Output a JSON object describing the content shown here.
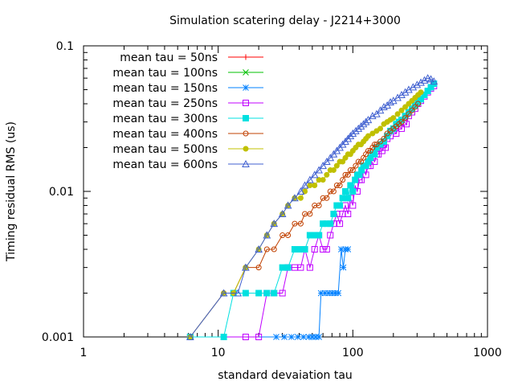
{
  "chart_data": {
    "type": "scatter",
    "title": "Simulation scatering delay - J2214+3000",
    "xlabel": "standard devaiation tau",
    "ylabel": "Timing residual RMS (us)",
    "xscale": "log",
    "yscale": "log",
    "xlim": [
      1,
      1000
    ],
    "ylim": [
      0.001,
      0.1
    ],
    "x_ticks": [
      {
        "value": 1,
        "label": "1"
      },
      {
        "value": 10,
        "label": "10"
      },
      {
        "value": 100,
        "label": "100"
      },
      {
        "value": 1000,
        "label": "1000"
      }
    ],
    "y_ticks": [
      {
        "value": 0.001,
        "label": "0.001"
      },
      {
        "value": 0.01,
        "label": "0.01"
      },
      {
        "value": 0.1,
        "label": "0.1"
      }
    ],
    "grid": false,
    "legend_position": "top-left",
    "series": [
      {
        "name": "mean tau = 50ns",
        "color": "#ff0000",
        "marker": "plus",
        "points": []
      },
      {
        "name": "mean tau = 100ns",
        "color": "#00c000",
        "marker": "cross",
        "points": []
      },
      {
        "name": "mean tau = 150ns",
        "color": "#0080ff",
        "marker": "star",
        "points": [
          [
            6.2,
            0.001
          ],
          [
            27,
            0.001
          ],
          [
            31,
            0.001
          ],
          [
            35,
            0.001
          ],
          [
            39,
            0.001
          ],
          [
            43,
            0.001
          ],
          [
            47,
            0.001
          ],
          [
            50,
            0.001
          ],
          [
            53,
            0.001
          ],
          [
            56,
            0.001
          ],
          [
            58,
            0.002
          ],
          [
            62,
            0.002
          ],
          [
            66,
            0.002
          ],
          [
            70,
            0.002
          ],
          [
            74,
            0.002
          ],
          [
            78,
            0.002
          ],
          [
            82,
            0.004
          ],
          [
            85,
            0.003
          ],
          [
            88,
            0.004
          ],
          [
            92,
            0.004
          ]
        ]
      },
      {
        "name": "mean tau = 250ns",
        "color": "#c000ff",
        "marker": "square-open",
        "points": [
          [
            6.2,
            0.001
          ],
          [
            16,
            0.001
          ],
          [
            20,
            0.001
          ],
          [
            23,
            0.002
          ],
          [
            26,
            0.002
          ],
          [
            30,
            0.002
          ],
          [
            33,
            0.003
          ],
          [
            37,
            0.003
          ],
          [
            41,
            0.003
          ],
          [
            44,
            0.004
          ],
          [
            48,
            0.003
          ],
          [
            52,
            0.004
          ],
          [
            56,
            0.005
          ],
          [
            60,
            0.004
          ],
          [
            64,
            0.004
          ],
          [
            68,
            0.005
          ],
          [
            72,
            0.006
          ],
          [
            76,
            0.007
          ],
          [
            80,
            0.006
          ],
          [
            84,
            0.007
          ],
          [
            88,
            0.008
          ],
          [
            92,
            0.007
          ],
          [
            96,
            0.009
          ],
          [
            100,
            0.008
          ],
          [
            104,
            0.011
          ],
          [
            108,
            0.01
          ],
          [
            112,
            0.012
          ],
          [
            116,
            0.012
          ],
          [
            120,
            0.014
          ],
          [
            125,
            0.013
          ],
          [
            130,
            0.015
          ],
          [
            135,
            0.015
          ],
          [
            140,
            0.017
          ],
          [
            145,
            0.016
          ],
          [
            150,
            0.018
          ],
          [
            155,
            0.018
          ],
          [
            160,
            0.02
          ],
          [
            165,
            0.019
          ],
          [
            170,
            0.021
          ],
          [
            175,
            0.02
          ],
          [
            180,
            0.023
          ],
          [
            190,
            0.024
          ],
          [
            200,
            0.026
          ],
          [
            210,
            0.025
          ],
          [
            220,
            0.028
          ],
          [
            230,
            0.027
          ],
          [
            240,
            0.03
          ],
          [
            250,
            0.029
          ],
          [
            260,
            0.033
          ],
          [
            275,
            0.035
          ],
          [
            290,
            0.037
          ],
          [
            305,
            0.04
          ],
          [
            320,
            0.042
          ],
          [
            340,
            0.045
          ],
          [
            360,
            0.048
          ],
          [
            380,
            0.051
          ],
          [
            400,
            0.053
          ]
        ]
      },
      {
        "name": "mean tau = 300ns",
        "color": "#00e0e0",
        "marker": "square-filled",
        "points": [
          [
            6.2,
            0.001
          ],
          [
            11,
            0.001
          ],
          [
            13,
            0.002
          ],
          [
            16,
            0.002
          ],
          [
            20,
            0.002
          ],
          [
            23,
            0.002
          ],
          [
            26,
            0.002
          ],
          [
            30,
            0.003
          ],
          [
            33,
            0.003
          ],
          [
            37,
            0.004
          ],
          [
            41,
            0.004
          ],
          [
            44,
            0.004
          ],
          [
            48,
            0.005
          ],
          [
            52,
            0.005
          ],
          [
            56,
            0.005
          ],
          [
            60,
            0.006
          ],
          [
            64,
            0.006
          ],
          [
            68,
            0.006
          ],
          [
            72,
            0.007
          ],
          [
            76,
            0.008
          ],
          [
            80,
            0.008
          ],
          [
            84,
            0.009
          ],
          [
            88,
            0.01
          ],
          [
            92,
            0.009
          ],
          [
            96,
            0.011
          ],
          [
            100,
            0.01
          ],
          [
            104,
            0.012
          ],
          [
            108,
            0.013
          ],
          [
            112,
            0.013
          ],
          [
            116,
            0.014
          ],
          [
            120,
            0.015
          ],
          [
            125,
            0.015
          ],
          [
            130,
            0.016
          ],
          [
            135,
            0.017
          ],
          [
            140,
            0.018
          ],
          [
            145,
            0.018
          ],
          [
            150,
            0.02
          ],
          [
            160,
            0.021
          ],
          [
            170,
            0.022
          ],
          [
            180,
            0.024
          ],
          [
            190,
            0.026
          ],
          [
            200,
            0.027
          ],
          [
            210,
            0.029
          ],
          [
            220,
            0.03
          ],
          [
            230,
            0.031
          ],
          [
            245,
            0.033
          ],
          [
            260,
            0.035
          ],
          [
            275,
            0.037
          ],
          [
            290,
            0.039
          ],
          [
            305,
            0.041
          ],
          [
            320,
            0.043
          ],
          [
            340,
            0.046
          ],
          [
            360,
            0.049
          ],
          [
            380,
            0.052
          ],
          [
            400,
            0.055
          ]
        ]
      },
      {
        "name": "mean tau = 400ns",
        "color": "#c04000",
        "marker": "circle-open",
        "points": [
          [
            6.2,
            0.001
          ],
          [
            11,
            0.002
          ],
          [
            13,
            0.002
          ],
          [
            16,
            0.003
          ],
          [
            20,
            0.003
          ],
          [
            23,
            0.004
          ],
          [
            26,
            0.004
          ],
          [
            30,
            0.005
          ],
          [
            33,
            0.005
          ],
          [
            37,
            0.006
          ],
          [
            41,
            0.006
          ],
          [
            44,
            0.007
          ],
          [
            48,
            0.007
          ],
          [
            52,
            0.008
          ],
          [
            56,
            0.008
          ],
          [
            60,
            0.009
          ],
          [
            64,
            0.009
          ],
          [
            68,
            0.01
          ],
          [
            72,
            0.01
          ],
          [
            76,
            0.011
          ],
          [
            80,
            0.011
          ],
          [
            84,
            0.012
          ],
          [
            88,
            0.013
          ],
          [
            92,
            0.013
          ],
          [
            96,
            0.014
          ],
          [
            100,
            0.014
          ],
          [
            105,
            0.015
          ],
          [
            110,
            0.016
          ],
          [
            115,
            0.016
          ],
          [
            120,
            0.017
          ],
          [
            125,
            0.018
          ],
          [
            130,
            0.019
          ],
          [
            135,
            0.019
          ],
          [
            140,
            0.02
          ],
          [
            145,
            0.021
          ],
          [
            150,
            0.021
          ],
          [
            160,
            0.022
          ],
          [
            170,
            0.023
          ],
          [
            180,
            0.025
          ],
          [
            190,
            0.026
          ],
          [
            200,
            0.027
          ],
          [
            210,
            0.028
          ],
          [
            220,
            0.029
          ],
          [
            230,
            0.03
          ],
          [
            245,
            0.032
          ],
          [
            260,
            0.034
          ],
          [
            275,
            0.036
          ],
          [
            290,
            0.038
          ],
          [
            305,
            0.04
          ]
        ]
      },
      {
        "name": "mean tau = 500ns",
        "color": "#c0c000",
        "marker": "circle-filled",
        "points": [
          [
            6.2,
            0.001
          ],
          [
            11,
            0.002
          ],
          [
            13,
            0.002
          ],
          [
            16,
            0.003
          ],
          [
            20,
            0.004
          ],
          [
            23,
            0.005
          ],
          [
            26,
            0.006
          ],
          [
            30,
            0.007
          ],
          [
            33,
            0.008
          ],
          [
            37,
            0.009
          ],
          [
            41,
            0.009
          ],
          [
            44,
            0.01
          ],
          [
            48,
            0.011
          ],
          [
            52,
            0.011
          ],
          [
            56,
            0.012
          ],
          [
            60,
            0.012
          ],
          [
            64,
            0.013
          ],
          [
            68,
            0.014
          ],
          [
            72,
            0.014
          ],
          [
            76,
            0.015
          ],
          [
            80,
            0.016
          ],
          [
            84,
            0.016
          ],
          [
            88,
            0.017
          ],
          [
            92,
            0.018
          ],
          [
            96,
            0.018
          ],
          [
            100,
            0.019
          ],
          [
            105,
            0.02
          ],
          [
            110,
            0.021
          ],
          [
            115,
            0.021
          ],
          [
            120,
            0.022
          ],
          [
            125,
            0.023
          ],
          [
            130,
            0.024
          ],
          [
            140,
            0.025
          ],
          [
            150,
            0.026
          ],
          [
            160,
            0.027
          ],
          [
            170,
            0.029
          ],
          [
            180,
            0.03
          ],
          [
            190,
            0.031
          ],
          [
            200,
            0.032
          ],
          [
            215,
            0.034
          ],
          [
            230,
            0.036
          ],
          [
            245,
            0.038
          ],
          [
            260,
            0.04
          ],
          [
            275,
            0.042
          ],
          [
            290,
            0.044
          ],
          [
            305,
            0.046
          ],
          [
            320,
            0.048
          ]
        ]
      },
      {
        "name": "mean tau = 600ns",
        "color": "#4060d0",
        "marker": "triangle-open",
        "points": [
          [
            6.2,
            0.001
          ],
          [
            11,
            0.002
          ],
          [
            14,
            0.002
          ],
          [
            16,
            0.003
          ],
          [
            20,
            0.004
          ],
          [
            23,
            0.005
          ],
          [
            26,
            0.006
          ],
          [
            30,
            0.007
          ],
          [
            33,
            0.008
          ],
          [
            37,
            0.009
          ],
          [
            41,
            0.01
          ],
          [
            44,
            0.011
          ],
          [
            48,
            0.012
          ],
          [
            52,
            0.013
          ],
          [
            56,
            0.014
          ],
          [
            60,
            0.015
          ],
          [
            64,
            0.016
          ],
          [
            68,
            0.017
          ],
          [
            72,
            0.018
          ],
          [
            76,
            0.019
          ],
          [
            80,
            0.02
          ],
          [
            84,
            0.021
          ],
          [
            88,
            0.022
          ],
          [
            92,
            0.023
          ],
          [
            96,
            0.024
          ],
          [
            100,
            0.025
          ],
          [
            105,
            0.026
          ],
          [
            110,
            0.027
          ],
          [
            115,
            0.028
          ],
          [
            120,
            0.029
          ],
          [
            125,
            0.03
          ],
          [
            130,
            0.031
          ],
          [
            140,
            0.033
          ],
          [
            150,
            0.034
          ],
          [
            160,
            0.036
          ],
          [
            170,
            0.038
          ],
          [
            180,
            0.039
          ],
          [
            190,
            0.041
          ],
          [
            200,
            0.042
          ],
          [
            215,
            0.044
          ],
          [
            230,
            0.046
          ],
          [
            245,
            0.048
          ],
          [
            260,
            0.05
          ],
          [
            280,
            0.052
          ],
          [
            300,
            0.054
          ],
          [
            320,
            0.056
          ],
          [
            340,
            0.058
          ],
          [
            360,
            0.06
          ],
          [
            380,
            0.059
          ],
          [
            400,
            0.057
          ]
        ]
      }
    ]
  }
}
